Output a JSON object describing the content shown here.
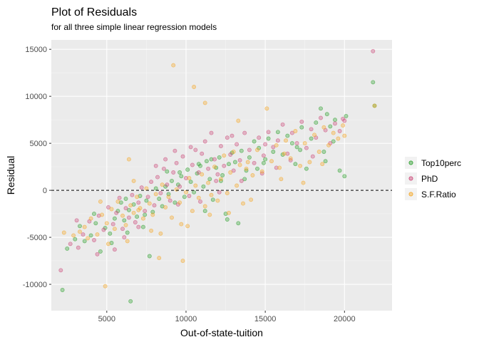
{
  "chart_data": {
    "type": "scatter",
    "title": "Plot of Residuals",
    "subtitle": "for all three simple linear regression models",
    "xlabel": "Out-of-state-tuition",
    "ylabel": "Residual",
    "xlim": [
      1500,
      23000
    ],
    "ylim": [
      -12800,
      16000
    ],
    "x_ticks": [
      5000,
      10000,
      15000,
      20000
    ],
    "x_tick_labels": [
      "5000",
      "10000",
      "15000",
      "20000"
    ],
    "y_ticks": [
      -10000,
      -5000,
      0,
      5000,
      10000,
      15000
    ],
    "y_tick_labels": [
      "-10000",
      "-5000",
      "0",
      "5000",
      "10000",
      "15000"
    ],
    "grid": true,
    "legend_position": "right",
    "reference_line": {
      "y": 0,
      "style": "dashed"
    },
    "series": [
      {
        "name": "Top10perc",
        "color": "#2ca02c",
        "points": [
          [
            2200,
            -10600
          ],
          [
            2500,
            -6200
          ],
          [
            3000,
            -5200
          ],
          [
            3600,
            -5400
          ],
          [
            4000,
            -4800
          ],
          [
            4300,
            -3500
          ],
          [
            4600,
            -6500
          ],
          [
            4900,
            -4000
          ],
          [
            5200,
            -4600
          ],
          [
            5500,
            -3000
          ],
          [
            5700,
            -2200
          ],
          [
            5900,
            -1300
          ],
          [
            6100,
            -3200
          ],
          [
            6300,
            -4500
          ],
          [
            6400,
            -2100
          ],
          [
            6500,
            -11800
          ],
          [
            6700,
            -1500
          ],
          [
            6900,
            -2800
          ],
          [
            7100,
            -600
          ],
          [
            7300,
            -3900
          ],
          [
            7500,
            -1100
          ],
          [
            7700,
            -7000
          ],
          [
            7900,
            -2300
          ],
          [
            8100,
            200
          ],
          [
            8300,
            -900
          ],
          [
            8500,
            -1700
          ],
          [
            8700,
            400
          ],
          [
            8900,
            -400
          ],
          [
            9100,
            1000
          ],
          [
            9300,
            -1300
          ],
          [
            9500,
            600
          ],
          [
            9700,
            1500
          ],
          [
            9900,
            -700
          ],
          [
            10100,
            2200
          ],
          [
            10300,
            900
          ],
          [
            10500,
            -200
          ],
          [
            10700,
            1800
          ],
          [
            10900,
            2600
          ],
          [
            11100,
            400
          ],
          [
            11300,
            3100
          ],
          [
            11500,
            1200
          ],
          [
            11700,
            -1000
          ],
          [
            11900,
            2400
          ],
          [
            12100,
            3500
          ],
          [
            12300,
            1600
          ],
          [
            12500,
            -2500
          ],
          [
            12700,
            2800
          ],
          [
            12900,
            4000
          ],
          [
            13100,
            3000
          ],
          [
            13300,
            -3500
          ],
          [
            13500,
            4200
          ],
          [
            13800,
            2100
          ],
          [
            14000,
            3500
          ],
          [
            14300,
            5200
          ],
          [
            14600,
            4500
          ],
          [
            14900,
            2900
          ],
          [
            15200,
            5500
          ],
          [
            15500,
            4100
          ],
          [
            15800,
            6200
          ],
          [
            16100,
            3800
          ],
          [
            16400,
            5800
          ],
          [
            16700,
            5000
          ],
          [
            17000,
            4600
          ],
          [
            17300,
            6700
          ],
          [
            17600,
            2300
          ],
          [
            17900,
            5500
          ],
          [
            18200,
            7200
          ],
          [
            18500,
            8700
          ],
          [
            18800,
            3100
          ],
          [
            19100,
            6800
          ],
          [
            19400,
            7500
          ],
          [
            19700,
            2100
          ],
          [
            20000,
            1500
          ],
          [
            21800,
            11500
          ],
          [
            21900,
            9000
          ],
          [
            12200,
            1000
          ],
          [
            10800,
            2800
          ],
          [
            9600,
            1900
          ],
          [
            8800,
            2000
          ],
          [
            11600,
            3300
          ],
          [
            13700,
            1200
          ],
          [
            15000,
            3300
          ],
          [
            16900,
            2800
          ],
          [
            18700,
            4100
          ],
          [
            19300,
            5200
          ],
          [
            7400,
            -2600
          ],
          [
            6200,
            -900
          ],
          [
            5300,
            -5600
          ],
          [
            4200,
            -2500
          ],
          [
            3300,
            -3800
          ],
          [
            14500,
            2300
          ],
          [
            17200,
            4300
          ],
          [
            20100,
            7900
          ],
          [
            18900,
            8100
          ],
          [
            12600,
            -3100
          ],
          [
            11200,
            -2200
          ]
        ]
      },
      {
        "name": "PhD",
        "color": "#cc4778",
        "points": [
          [
            2100,
            -8500
          ],
          [
            2700,
            -5700
          ],
          [
            3200,
            -6100
          ],
          [
            3500,
            -4700
          ],
          [
            3900,
            -3300
          ],
          [
            4200,
            -5300
          ],
          [
            4500,
            -2700
          ],
          [
            4800,
            -4200
          ],
          [
            5100,
            -1800
          ],
          [
            5400,
            -3600
          ],
          [
            5600,
            -2400
          ],
          [
            5800,
            -800
          ],
          [
            6000,
            -4100
          ],
          [
            6200,
            -1900
          ],
          [
            6400,
            -2900
          ],
          [
            6600,
            -500
          ],
          [
            6800,
            -3400
          ],
          [
            7000,
            -1300
          ],
          [
            7200,
            300
          ],
          [
            7400,
            -2200
          ],
          [
            7600,
            -700
          ],
          [
            7800,
            900
          ],
          [
            8000,
            -1600
          ],
          [
            8200,
            1400
          ],
          [
            8400,
            -300
          ],
          [
            8600,
            2300
          ],
          [
            8800,
            600
          ],
          [
            9000,
            -1100
          ],
          [
            9200,
            1900
          ],
          [
            9400,
            2900
          ],
          [
            9600,
            400
          ],
          [
            9800,
            3600
          ],
          [
            10000,
            1300
          ],
          [
            10200,
            -600
          ],
          [
            10400,
            2700
          ],
          [
            10600,
            4300
          ],
          [
            10800,
            1900
          ],
          [
            11000,
            3900
          ],
          [
            11200,
            5200
          ],
          [
            11400,
            2300
          ],
          [
            11600,
            6100
          ],
          [
            11800,
            3300
          ],
          [
            12000,
            1700
          ],
          [
            12200,
            4700
          ],
          [
            12400,
            2600
          ],
          [
            12600,
            5600
          ],
          [
            12800,
            3800
          ],
          [
            13000,
            2100
          ],
          [
            13200,
            4900
          ],
          [
            13400,
            3200
          ],
          [
            13700,
            6100
          ],
          [
            14000,
            4300
          ],
          [
            14300,
            2900
          ],
          [
            14600,
            5600
          ],
          [
            14900,
            3700
          ],
          [
            15200,
            6200
          ],
          [
            15500,
            4600
          ],
          [
            15800,
            5300
          ],
          [
            16100,
            7000
          ],
          [
            16400,
            3900
          ],
          [
            16700,
            6100
          ],
          [
            17000,
            5000
          ],
          [
            17300,
            7300
          ],
          [
            17600,
            4500
          ],
          [
            17900,
            6500
          ],
          [
            18200,
            5600
          ],
          [
            18500,
            7700
          ],
          [
            18800,
            6400
          ],
          [
            19100,
            5000
          ],
          [
            19400,
            7100
          ],
          [
            19700,
            6300
          ],
          [
            20000,
            7400
          ],
          [
            21800,
            14800
          ],
          [
            9300,
            4200
          ],
          [
            10900,
            -1200
          ],
          [
            12100,
            -200
          ],
          [
            13500,
            1000
          ],
          [
            15700,
            2400
          ],
          [
            8100,
            2600
          ],
          [
            7000,
            -3900
          ],
          [
            5500,
            -6300
          ],
          [
            4400,
            -6800
          ],
          [
            3100,
            -3200
          ],
          [
            6100,
            -5000
          ],
          [
            16600,
            3200
          ],
          [
            18000,
            3600
          ],
          [
            19900,
            7600
          ],
          [
            14800,
            1800
          ],
          [
            11900,
            1000
          ],
          [
            9500,
            -1500
          ],
          [
            8700,
            3300
          ],
          [
            10300,
            4600
          ],
          [
            12900,
            5800
          ],
          [
            15000,
            4900
          ]
        ]
      },
      {
        "name": "S.F.Ratio",
        "color": "#f5a623",
        "points": [
          [
            2300,
            -4500
          ],
          [
            2900,
            -4800
          ],
          [
            3300,
            -4400
          ],
          [
            3600,
            -3900
          ],
          [
            4000,
            -3000
          ],
          [
            4400,
            -4700
          ],
          [
            4700,
            -2600
          ],
          [
            4900,
            -10200
          ],
          [
            5000,
            -3500
          ],
          [
            5300,
            -2000
          ],
          [
            5500,
            -4100
          ],
          [
            5700,
            -1200
          ],
          [
            6000,
            -2700
          ],
          [
            6200,
            -3700
          ],
          [
            6400,
            3300
          ],
          [
            6500,
            -1600
          ],
          [
            6700,
            -2400
          ],
          [
            6900,
            -700
          ],
          [
            7100,
            -1900
          ],
          [
            7300,
            -3000
          ],
          [
            7500,
            200
          ],
          [
            7700,
            -1400
          ],
          [
            7900,
            -2600
          ],
          [
            8100,
            -400
          ],
          [
            8300,
            -7200
          ],
          [
            8500,
            600
          ],
          [
            8700,
            -1800
          ],
          [
            8900,
            -700
          ],
          [
            9100,
            -2900
          ],
          [
            9200,
            13300
          ],
          [
            9400,
            100
          ],
          [
            9600,
            -1300
          ],
          [
            9800,
            -7500
          ],
          [
            10000,
            -200
          ],
          [
            10200,
            1300
          ],
          [
            10400,
            -2200
          ],
          [
            10600,
            500
          ],
          [
            10800,
            -800
          ],
          [
            11000,
            1700
          ],
          [
            11200,
            -1700
          ],
          [
            11400,
            800
          ],
          [
            11600,
            -500
          ],
          [
            11800,
            2500
          ],
          [
            12000,
            -1100
          ],
          [
            12200,
            1200
          ],
          [
            12400,
            3700
          ],
          [
            12600,
            -300
          ],
          [
            12800,
            1900
          ],
          [
            13000,
            4100
          ],
          [
            13200,
            500
          ],
          [
            13400,
            2700
          ],
          [
            13600,
            -1400
          ],
          [
            13900,
            3000
          ],
          [
            14200,
            1600
          ],
          [
            14500,
            4300
          ],
          [
            14800,
            2000
          ],
          [
            15100,
            8700
          ],
          [
            15400,
            3100
          ],
          [
            15700,
            4800
          ],
          [
            16000,
            1200
          ],
          [
            16300,
            5300
          ],
          [
            16600,
            3400
          ],
          [
            16900,
            6300
          ],
          [
            17200,
            2600
          ],
          [
            17500,
            5000
          ],
          [
            17800,
            3000
          ],
          [
            18100,
            5900
          ],
          [
            18400,
            4100
          ],
          [
            18700,
            6700
          ],
          [
            19000,
            4800
          ],
          [
            19300,
            6100
          ],
          [
            19600,
            5500
          ],
          [
            19900,
            6900
          ],
          [
            21900,
            9000
          ],
          [
            10500,
            11000
          ],
          [
            11200,
            9300
          ],
          [
            6700,
            1000
          ],
          [
            7800,
            -4300
          ],
          [
            5100,
            -5700
          ],
          [
            3800,
            -5100
          ],
          [
            12700,
            -2400
          ],
          [
            14100,
            -1000
          ],
          [
            15900,
            2400
          ],
          [
            17400,
            800
          ],
          [
            13300,
            7400
          ],
          [
            9700,
            -3600
          ],
          [
            8400,
            -4600
          ],
          [
            6300,
            -5400
          ],
          [
            7000,
            -2100
          ],
          [
            10100,
            -3800
          ],
          [
            11500,
            -2600
          ],
          [
            13800,
            2300
          ],
          [
            16200,
            3900
          ],
          [
            18600,
            2800
          ],
          [
            20000,
            5800
          ],
          [
            4600,
            -1200
          ]
        ]
      }
    ]
  }
}
